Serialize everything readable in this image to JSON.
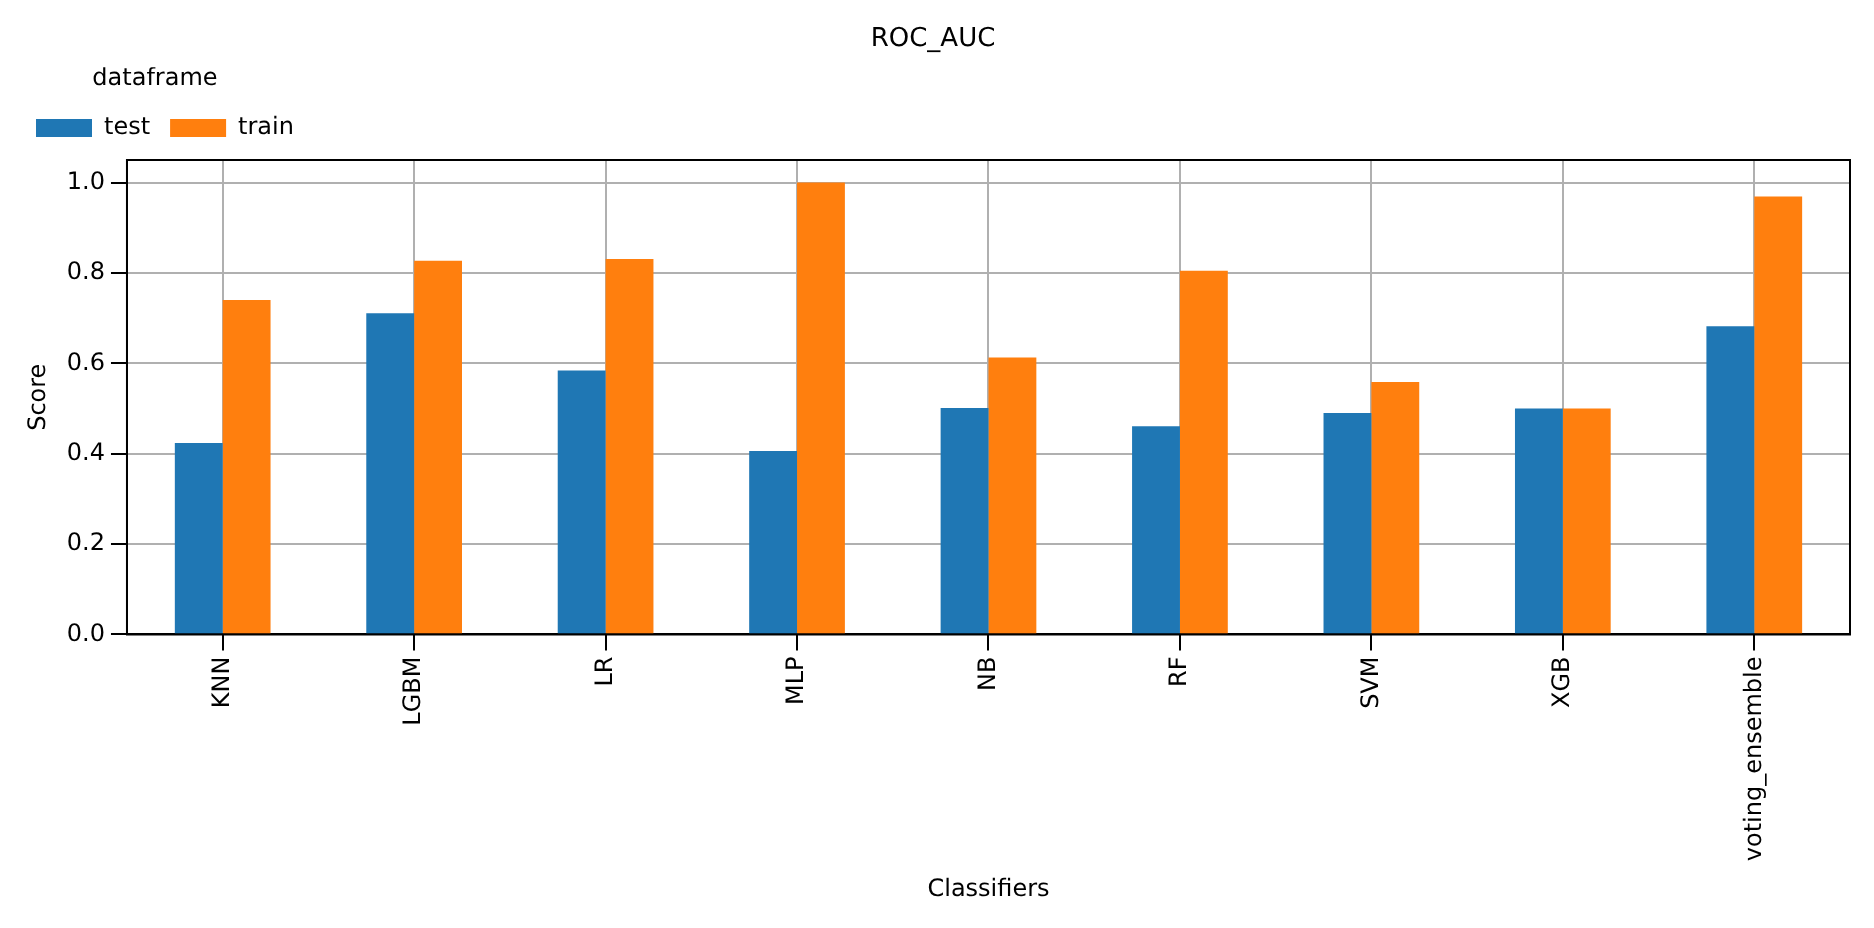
{
  "chart_data": {
    "type": "bar",
    "title": "ROC_AUC",
    "xlabel": "Classifiers",
    "ylabel": "Score",
    "legend_title": "dataframe",
    "categories": [
      "KNN",
      "LGBM",
      "LR",
      "MLP",
      "NB",
      "RF",
      "SVM",
      "XGB",
      "voting_ensemble"
    ],
    "series": [
      {
        "name": "test",
        "color": "#1f77b4",
        "values": [
          0.424,
          0.711,
          0.584,
          0.406,
          0.501,
          0.461,
          0.49,
          0.5,
          0.682
        ]
      },
      {
        "name": "train",
        "color": "#ff7f0e",
        "values": [
          0.74,
          0.827,
          0.831,
          1.0,
          0.613,
          0.805,
          0.559,
          0.5,
          0.969
        ]
      }
    ],
    "ylim": [
      0,
      1.05
    ],
    "yticks": [
      {
        "value": 0,
        "label": "0.0"
      },
      {
        "value": 0.2,
        "label": "0.2"
      },
      {
        "value": 0.4,
        "label": "0.4"
      },
      {
        "value": 0.6,
        "label": "0.6"
      },
      {
        "value": 0.8,
        "label": "0.8"
      },
      {
        "value": 1,
        "label": "1.0"
      }
    ],
    "grid": true,
    "legend": "top left"
  }
}
